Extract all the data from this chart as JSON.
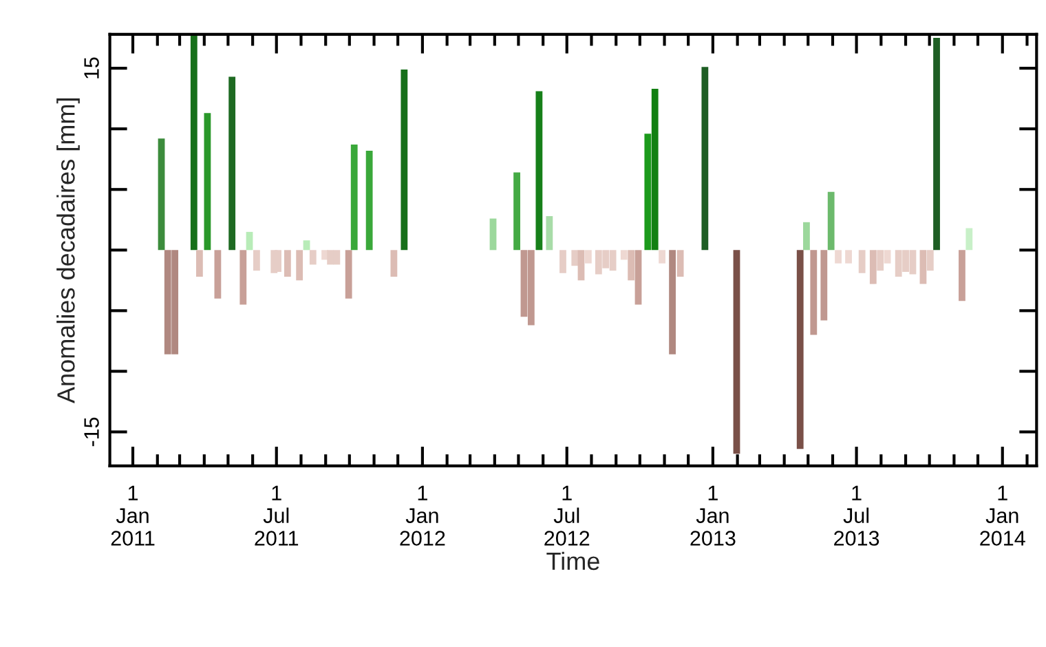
{
  "chart_data": {
    "type": "bar",
    "xlabel": "Time",
    "ylabel": "Anomalies decadaires [mm]",
    "x": [
      "2011-02-06",
      "2011-02-14",
      "2011-02-23",
      "2011-03-19",
      "2011-03-26",
      "2011-04-05",
      "2011-04-18",
      "2011-05-06",
      "2011-05-20",
      "2011-05-28",
      "2011-06-06",
      "2011-06-28",
      "2011-07-03",
      "2011-07-15",
      "2011-07-30",
      "2011-08-08",
      "2011-08-16",
      "2011-08-31",
      "2011-09-07",
      "2011-09-15",
      "2011-09-30",
      "2011-10-07",
      "2011-10-26",
      "2011-11-26",
      "2011-12-09",
      "2012-03-30",
      "2012-04-29",
      "2012-05-08",
      "2012-05-17",
      "2012-05-27",
      "2012-06-09",
      "2012-06-26",
      "2012-07-11",
      "2012-07-19",
      "2012-07-28",
      "2012-08-10",
      "2012-08-19",
      "2012-08-28",
      "2012-09-11",
      "2012-09-20",
      "2012-09-29",
      "2012-10-11",
      "2012-10-20",
      "2012-10-29",
      "2012-11-11",
      "2012-11-21",
      "2012-12-22",
      "2013-01-31",
      "2013-04-21",
      "2013-04-29",
      "2013-05-08",
      "2013-05-21",
      "2013-05-30",
      "2013-06-08",
      "2013-06-21",
      "2013-07-08",
      "2013-07-22",
      "2013-07-31",
      "2013-08-09",
      "2013-08-23",
      "2013-09-01",
      "2013-09-10",
      "2013-09-23",
      "2013-10-02",
      "2013-10-10",
      "2013-11-11",
      "2013-11-20"
    ],
    "values": [
      9.2,
      -8.6,
      -8.6,
      17.8,
      -2.2,
      11.3,
      -4.0,
      14.3,
      -4.5,
      1.5,
      -1.7,
      -1.9,
      -1.8,
      -2.2,
      -2.5,
      0.8,
      -1.2,
      -0.8,
      -1.2,
      -1.2,
      -4.0,
      8.7,
      8.2,
      -2.2,
      14.9,
      2.6,
      6.4,
      -5.5,
      -6.2,
      13.1,
      2.8,
      -1.9,
      -1.3,
      -2.5,
      -1.1,
      -2.0,
      -1.5,
      -1.7,
      -0.8,
      -2.5,
      -4.5,
      9.6,
      13.3,
      -1.1,
      -8.6,
      -2.2,
      15.1,
      -16.8,
      -16.4,
      2.3,
      -7.0,
      -5.8,
      4.8,
      -1.1,
      -1.1,
      -1.9,
      -2.8,
      -1.7,
      -1.1,
      -2.2,
      -1.8,
      -2.0,
      -2.8,
      -1.7,
      17.5,
      -4.2,
      1.8
    ],
    "colors": [
      "#3c8c3c",
      "#b08880",
      "#b08880",
      "#17701a",
      "#dcbcb4",
      "#2a982a",
      "#c8a098",
      "#1e6a22",
      "#c8a098",
      "#b8ecb8",
      "#e6cdc6",
      "#e6cdc6",
      "#e6cdc6",
      "#dcbcb4",
      "#dcbcb4",
      "#b8ecb8",
      "#e6cdc6",
      "#eed8d2",
      "#e6cdc6",
      "#e6cdc6",
      "#c8a098",
      "#3aa83a",
      "#3aa83a",
      "#dcbcb4",
      "#17701a",
      "#9cd89c",
      "#44aa44",
      "#c09890",
      "#c09890",
      "#17801a",
      "#a8dca8",
      "#e6cdc6",
      "#e6cdc6",
      "#dcbcb4",
      "#eed8d2",
      "#e6cdc6",
      "#e6cdc6",
      "#e6cdc6",
      "#eed8d2",
      "#dcbcb4",
      "#c8a098",
      "#1c9a1c",
      "#128012",
      "#eed8d2",
      "#b08880",
      "#dcbcb4",
      "#1e5e24",
      "#7a5048",
      "#7a5048",
      "#9cd89c",
      "#c09890",
      "#c09890",
      "#6cba6c",
      "#eed8d2",
      "#eed8d2",
      "#e6cdc6",
      "#dcbcb4",
      "#e6cdc6",
      "#eed8d2",
      "#e6cdc6",
      "#e6cdc6",
      "#e6cdc6",
      "#dcbcb4",
      "#e6cdc6",
      "#1e5e24",
      "#c8a098",
      "#c8f0c8"
    ],
    "xlim": [
      "2010-12-03",
      "2014-02-13"
    ],
    "xticks": [
      {
        "value": "2011-01-01",
        "label": "1\nJan\n2011"
      },
      {
        "value": "2011-02-01",
        "label": null
      },
      {
        "value": "2011-03-01",
        "label": null
      },
      {
        "value": "2011-04-01",
        "label": null
      },
      {
        "value": "2011-05-01",
        "label": null
      },
      {
        "value": "2011-06-01",
        "label": null
      },
      {
        "value": "2011-07-01",
        "label": "1\nJul\n2011"
      },
      {
        "value": "2011-08-01",
        "label": null
      },
      {
        "value": "2011-09-01",
        "label": null
      },
      {
        "value": "2011-10-01",
        "label": null
      },
      {
        "value": "2011-11-01",
        "label": null
      },
      {
        "value": "2011-12-01",
        "label": null
      },
      {
        "value": "2012-01-01",
        "label": "1\nJan\n2012"
      },
      {
        "value": "2012-02-01",
        "label": null
      },
      {
        "value": "2012-03-01",
        "label": null
      },
      {
        "value": "2012-04-01",
        "label": null
      },
      {
        "value": "2012-05-01",
        "label": null
      },
      {
        "value": "2012-06-01",
        "label": null
      },
      {
        "value": "2012-07-01",
        "label": "1\nJul\n2012"
      },
      {
        "value": "2012-08-01",
        "label": null
      },
      {
        "value": "2012-09-01",
        "label": null
      },
      {
        "value": "2012-10-01",
        "label": null
      },
      {
        "value": "2012-11-01",
        "label": null
      },
      {
        "value": "2012-12-01",
        "label": null
      },
      {
        "value": "2013-01-01",
        "label": "1\nJan\n2013"
      },
      {
        "value": "2013-02-01",
        "label": null
      },
      {
        "value": "2013-03-01",
        "label": null
      },
      {
        "value": "2013-04-01",
        "label": null
      },
      {
        "value": "2013-05-01",
        "label": null
      },
      {
        "value": "2013-06-01",
        "label": null
      },
      {
        "value": "2013-07-01",
        "label": "1\nJul\n2013"
      },
      {
        "value": "2013-08-01",
        "label": null
      },
      {
        "value": "2013-09-01",
        "label": null
      },
      {
        "value": "2013-10-01",
        "label": null
      },
      {
        "value": "2013-11-01",
        "label": null
      },
      {
        "value": "2013-12-01",
        "label": null
      },
      {
        "value": "2014-01-01",
        "label": "1\nJan\n2014"
      },
      {
        "value": "2014-02-01",
        "label": null
      }
    ],
    "ylim": [
      -17.8,
      17.8
    ],
    "yticks": [
      {
        "value": -15,
        "label": "-15"
      },
      {
        "value": -10,
        "label": null
      },
      {
        "value": -5,
        "label": null
      },
      {
        "value": 0,
        "label": null
      },
      {
        "value": 5,
        "label": null
      },
      {
        "value": 10,
        "label": null
      },
      {
        "value": 15,
        "label": "15"
      }
    ],
    "grid": false,
    "legend": false
  }
}
